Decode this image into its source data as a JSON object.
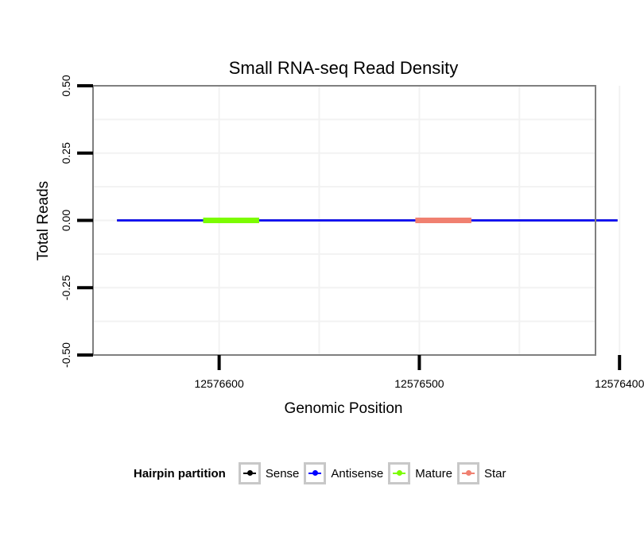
{
  "chart_data": {
    "type": "line",
    "title": "Small RNA-seq Read Density",
    "xlabel": "Genomic Position",
    "ylabel": "Total Reads",
    "x_reversed": true,
    "xlim": [
      12576663,
      12576412
    ],
    "ylim": [
      -0.5,
      0.5
    ],
    "x_ticks": [
      12576600,
      12576500,
      12576400
    ],
    "x_tick_labels": [
      "12576600",
      "12576500",
      "12576400"
    ],
    "y_ticks": [
      -0.5,
      -0.25,
      0.0,
      0.25,
      0.5
    ],
    "y_tick_labels": [
      "-0.50",
      "-0.25",
      "0.00",
      "0.25",
      "0.50"
    ],
    "grid": true,
    "series": [
      {
        "name": "Sense",
        "color": "#000000",
        "x": [
          12576651,
          12576401
        ],
        "y": [
          0,
          0
        ]
      },
      {
        "name": "Antisense",
        "color": "#0000ff",
        "x": [
          12576651,
          12576401
        ],
        "y": [
          0,
          0
        ]
      },
      {
        "name": "Mature",
        "color": "#7cfc00",
        "x": [
          12576608,
          12576580
        ],
        "y": [
          0,
          0
        ]
      },
      {
        "name": "Star",
        "color": "#f08070",
        "x": [
          12576502,
          12576474
        ],
        "y": [
          0,
          0
        ]
      }
    ],
    "legend": {
      "title": "Hairpin partition",
      "position": "bottom",
      "entries": [
        "Sense",
        "Antisense",
        "Mature",
        "Star"
      ]
    }
  }
}
